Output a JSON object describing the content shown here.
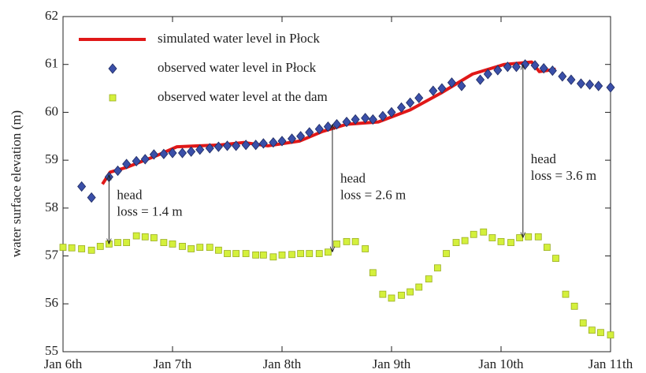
{
  "chart_data": {
    "type": "scatter",
    "ylabel": "water surface elevation (m)",
    "xlim": [
      0,
      5
    ],
    "ylim": [
      55,
      62
    ],
    "xticks": [
      {
        "value": 0,
        "label": "Jan 6th"
      },
      {
        "value": 1,
        "label": "Jan 7th"
      },
      {
        "value": 2,
        "label": "Jan 8th"
      },
      {
        "value": 3,
        "label": "Jan 9th"
      },
      {
        "value": 4,
        "label": "Jan 10th"
      },
      {
        "value": 5,
        "label": "Jan 11th"
      }
    ],
    "yticks": [
      55,
      56,
      57,
      58,
      59,
      60,
      61,
      62
    ],
    "legend": "upper left",
    "series": [
      {
        "name": "simulated water level in Płock",
        "kind": "line",
        "color": "#e01818",
        "x": [
          0.36,
          0.43,
          0.58,
          0.86,
          1.04,
          1.44,
          1.65,
          1.87,
          2.16,
          2.37,
          2.59,
          2.88,
          3.17,
          3.45,
          3.74,
          4.03,
          4.28,
          4.35,
          4.5
        ],
        "values": [
          58.5,
          58.75,
          58.85,
          59.1,
          59.28,
          59.32,
          59.37,
          59.3,
          59.4,
          59.6,
          59.75,
          59.8,
          60.05,
          60.4,
          60.8,
          61.0,
          61.05,
          60.85,
          60.9
        ]
      },
      {
        "name": "observed water level in Płock",
        "kind": "diamond",
        "color": "#3a4fa8",
        "x": [
          0.17,
          0.26,
          0.42,
          0.5,
          0.58,
          0.67,
          0.75,
          0.83,
          0.92,
          1.0,
          1.09,
          1.17,
          1.25,
          1.34,
          1.42,
          1.5,
          1.58,
          1.67,
          1.76,
          1.83,
          1.92,
          2.0,
          2.09,
          2.17,
          2.25,
          2.34,
          2.42,
          2.5,
          2.59,
          2.67,
          2.76,
          2.83,
          2.92,
          3.0,
          3.09,
          3.17,
          3.25,
          3.38,
          3.46,
          3.55,
          3.64,
          3.81,
          3.88,
          3.97,
          4.06,
          4.14,
          4.22,
          4.31,
          4.39,
          4.47,
          4.56,
          4.64,
          4.73,
          4.81,
          4.89,
          5.0
        ],
        "values": [
          58.45,
          58.22,
          58.65,
          58.78,
          58.92,
          58.98,
          59.02,
          59.12,
          59.13,
          59.15,
          59.15,
          59.18,
          59.22,
          59.25,
          59.28,
          59.3,
          59.3,
          59.32,
          59.32,
          59.35,
          59.37,
          59.4,
          59.45,
          59.5,
          59.58,
          59.65,
          59.7,
          59.75,
          59.8,
          59.85,
          59.88,
          59.85,
          59.92,
          60.0,
          60.1,
          60.2,
          60.3,
          60.45,
          60.5,
          60.62,
          60.55,
          60.68,
          60.8,
          60.88,
          60.95,
          60.95,
          61.0,
          60.98,
          60.92,
          60.87,
          60.75,
          60.68,
          60.6,
          60.58,
          60.55,
          60.52
        ]
      },
      {
        "name": "observed water level at the dam",
        "kind": "square",
        "color": "#d4f03c",
        "x": [
          0,
          0.08,
          0.17,
          0.26,
          0.34,
          0.42,
          0.5,
          0.58,
          0.67,
          0.75,
          0.83,
          0.92,
          1.0,
          1.09,
          1.17,
          1.25,
          1.34,
          1.42,
          1.5,
          1.58,
          1.67,
          1.76,
          1.83,
          1.92,
          2.0,
          2.09,
          2.17,
          2.25,
          2.34,
          2.42,
          2.5,
          2.59,
          2.67,
          2.76,
          2.83,
          2.92,
          3.0,
          3.09,
          3.17,
          3.25,
          3.34,
          3.42,
          3.5,
          3.59,
          3.67,
          3.75,
          3.84,
          3.92,
          4.0,
          4.09,
          4.17,
          4.25,
          4.34,
          4.42,
          4.5,
          4.59,
          4.67,
          4.75,
          4.83,
          4.91,
          5.0
        ],
        "values": [
          57.18,
          57.17,
          57.15,
          57.12,
          57.2,
          57.25,
          57.28,
          57.28,
          57.42,
          57.4,
          57.38,
          57.28,
          57.25,
          57.2,
          57.15,
          57.18,
          57.18,
          57.12,
          57.05,
          57.05,
          57.05,
          57.02,
          57.02,
          56.98,
          57.02,
          57.03,
          57.05,
          57.05,
          57.05,
          57.08,
          57.25,
          57.3,
          57.3,
          57.15,
          56.65,
          56.2,
          56.12,
          56.18,
          56.25,
          56.35,
          56.52,
          56.75,
          57.05,
          57.28,
          57.32,
          57.45,
          57.5,
          57.38,
          57.3,
          57.28,
          57.38,
          57.4,
          57.4,
          57.18,
          56.95,
          56.2,
          55.95,
          55.6,
          55.45,
          55.4,
          55.35
        ]
      }
    ],
    "annotations": [
      {
        "lines": [
          "head",
          "loss = 1.4 m"
        ],
        "x": 0.42,
        "from": 58.7,
        "to": 57.25,
        "text_y": 58.25
      },
      {
        "lines": [
          "head",
          "loss = 2.6 m"
        ],
        "x": 2.46,
        "from": 59.75,
        "to": 57.08,
        "text_y": 58.6
      },
      {
        "lines": [
          "head",
          "loss = 3.6 m"
        ],
        "x": 4.2,
        "from": 61.0,
        "to": 57.38,
        "text_y": 59.0
      }
    ]
  }
}
